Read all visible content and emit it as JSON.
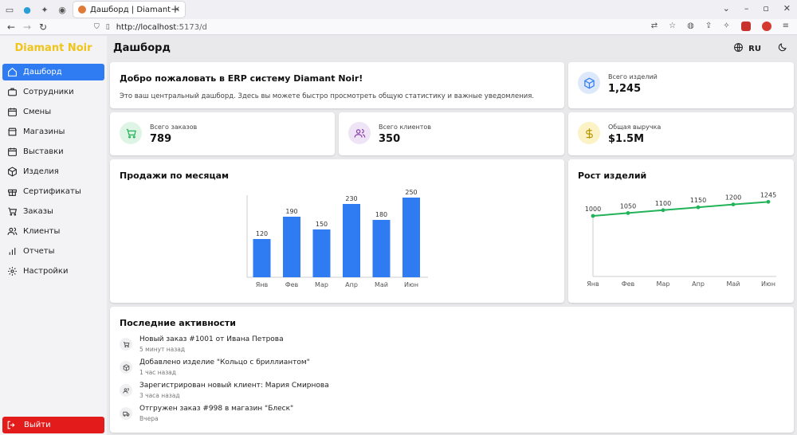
{
  "browser": {
    "tab_title": "Дашборд | Diamant Noir",
    "url_host": "http://localhost",
    "url_rest": ":5173/d"
  },
  "brand": "Diamant Noir",
  "page_title": "Дашборд",
  "language": "RU",
  "sidebar": {
    "items": [
      {
        "label": "Дашборд",
        "icon": "home-icon",
        "active": true
      },
      {
        "label": "Сотрудники",
        "icon": "briefcase-icon"
      },
      {
        "label": "Смены",
        "icon": "calendar-icon"
      },
      {
        "label": "Магазины",
        "icon": "store-icon"
      },
      {
        "label": "Выставки",
        "icon": "calendar-icon"
      },
      {
        "label": "Изделия",
        "icon": "cube-icon"
      },
      {
        "label": "Сертификаты",
        "icon": "gift-icon"
      },
      {
        "label": "Заказы",
        "icon": "cart-icon"
      },
      {
        "label": "Клиенты",
        "icon": "users-icon"
      },
      {
        "label": "Отчеты",
        "icon": "bar-chart-icon"
      },
      {
        "label": "Настройки",
        "icon": "gear-icon"
      }
    ],
    "logout_label": "Выйти"
  },
  "welcome": {
    "title": "Добро пожаловать в ERP систему Diamant Noir!",
    "text": "Это ваш центральный дашборд. Здесь вы можете быстро просмотреть общую статистику и важные уведомления."
  },
  "stats": {
    "products": {
      "label": "Всего изделий",
      "value": "1,245",
      "icon": "cube-icon",
      "color": "#2f7bf1"
    },
    "orders": {
      "label": "Всего заказов",
      "value": "789",
      "icon": "cart-icon",
      "color": "#22b35a"
    },
    "clients": {
      "label": "Всего клиентов",
      "value": "350",
      "icon": "users-icon",
      "color": "#8e44ad"
    },
    "revenue": {
      "label": "Общая выручка",
      "value": "$1.5M",
      "icon": "dollar-icon",
      "color": "#c9a400"
    }
  },
  "charts": {
    "sales_title": "Продажи по месяцам",
    "growth_title": "Рост изделий"
  },
  "chart_data": [
    {
      "type": "bar",
      "title": "Продажи по месяцам",
      "categories": [
        "Янв",
        "Фев",
        "Мар",
        "Апр",
        "Май",
        "Июн"
      ],
      "values": [
        120,
        190,
        150,
        230,
        180,
        250
      ],
      "ylim": [
        0,
        250
      ],
      "color": "#2f7bf1"
    },
    {
      "type": "line",
      "title": "Рост изделий",
      "categories": [
        "Янв",
        "Фев",
        "Мар",
        "Апр",
        "Май",
        "Июн"
      ],
      "values": [
        1000,
        1050,
        1100,
        1150,
        1200,
        1245
      ],
      "color": "#22b35a"
    }
  ],
  "activity": {
    "title": "Последние активности",
    "items": [
      {
        "text": "Новый заказ #1001 от Ивана Петрова",
        "time": "5 минут назад",
        "icon": "cart-icon"
      },
      {
        "text": "Добавлено изделие \"Кольцо с бриллиантом\"",
        "time": "1 час назад",
        "icon": "cube-icon"
      },
      {
        "text": "Зарегистрирован новый клиент: Мария Смирнова",
        "time": "3 часа назад",
        "icon": "users-icon"
      },
      {
        "text": "Отгружен заказ #998 в магазин \"Блеск\"",
        "time": "Вчера",
        "icon": "truck-icon"
      }
    ]
  }
}
